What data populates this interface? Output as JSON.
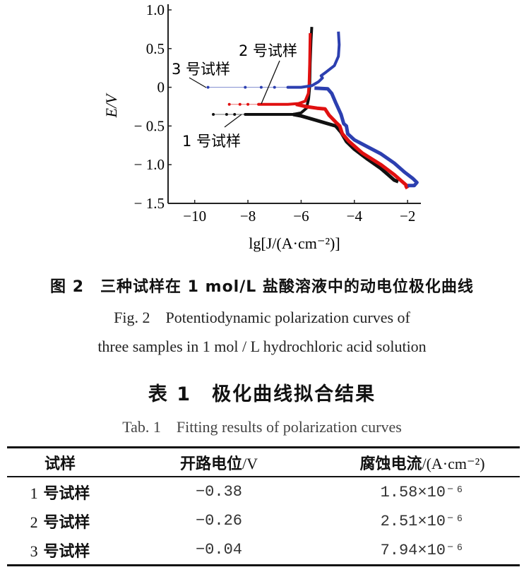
{
  "chart_data": {
    "type": "line",
    "xlabel": "lg[J/(A·cm⁻²)]",
    "ylabel": "E/V",
    "xlim": [
      -11,
      -1.5
    ],
    "ylim": [
      -1.5,
      1.0
    ],
    "xticks": [
      -10,
      -8,
      -6,
      -4,
      -2
    ],
    "yticks": [
      1.0,
      0.5,
      0,
      -0.5,
      -1.0,
      -1.5
    ],
    "xtick_labels": [
      "−10",
      "−8",
      "−6",
      "−4",
      "−2"
    ],
    "ytick_labels": [
      "1.0",
      "0.5",
      "0",
      "− 0.5",
      "− 1.0",
      "− 1.5"
    ],
    "grid": false,
    "series": [
      {
        "name": "1 号试样",
        "color": "#111111",
        "dotted": [
          [
            -9.3,
            -0.35
          ],
          [
            -8.8,
            -0.35
          ],
          [
            -8.5,
            -0.35
          ],
          [
            -8.1,
            -0.35
          ]
        ],
        "anodic": [
          [
            -8.1,
            -0.35
          ],
          [
            -7,
            -0.35
          ],
          [
            -6.3,
            -0.35
          ],
          [
            -6.0,
            -0.33
          ],
          [
            -5.8,
            -0.27
          ],
          [
            -5.72,
            -0.15
          ],
          [
            -5.68,
            0
          ],
          [
            -5.66,
            0.3
          ],
          [
            -5.63,
            0.6
          ],
          [
            -5.6,
            0.78
          ]
        ],
        "cathodic": [
          [
            -6.3,
            -0.35
          ],
          [
            -6.0,
            -0.37
          ],
          [
            -5.5,
            -0.42
          ],
          [
            -5.0,
            -0.47
          ],
          [
            -4.7,
            -0.5
          ],
          [
            -4.5,
            -0.58
          ],
          [
            -4.3,
            -0.7
          ],
          [
            -4.0,
            -0.8
          ],
          [
            -3.5,
            -0.93
          ],
          [
            -3.0,
            -1.05
          ],
          [
            -2.7,
            -1.14
          ],
          [
            -2.5,
            -1.2
          ],
          [
            -2.35,
            -1.22
          ]
        ]
      },
      {
        "name": "2 号试样",
        "color": "#e01010",
        "dotted": [
          [
            -8.7,
            -0.22
          ],
          [
            -8.3,
            -0.22
          ],
          [
            -8.0,
            -0.22
          ],
          [
            -7.6,
            -0.22
          ]
        ],
        "anodic": [
          [
            -7.6,
            -0.22
          ],
          [
            -6.5,
            -0.22
          ],
          [
            -6.1,
            -0.21
          ],
          [
            -5.85,
            -0.18
          ],
          [
            -5.73,
            -0.08
          ],
          [
            -5.7,
            0.05
          ],
          [
            -5.68,
            0.3
          ],
          [
            -5.66,
            0.7
          ]
        ],
        "cathodic": [
          [
            -6.2,
            -0.22
          ],
          [
            -5.8,
            -0.25
          ],
          [
            -5.4,
            -0.27
          ],
          [
            -5.1,
            -0.28
          ],
          [
            -4.95,
            -0.36
          ],
          [
            -4.7,
            -0.45
          ],
          [
            -4.55,
            -0.5
          ],
          [
            -4.45,
            -0.6
          ],
          [
            -4.2,
            -0.7
          ],
          [
            -3.7,
            -0.85
          ],
          [
            -3.0,
            -1.0
          ],
          [
            -2.5,
            -1.13
          ],
          [
            -2.2,
            -1.22
          ],
          [
            -2.0,
            -1.28
          ],
          [
            -2.1,
            -1.3
          ]
        ]
      },
      {
        "name": "3 号试样",
        "color": "#2c3fb0",
        "dotted": [
          [
            -9.5,
            0
          ],
          [
            -8.1,
            0
          ],
          [
            -7.5,
            0
          ],
          [
            -7.0,
            0
          ],
          [
            -6.5,
            0
          ]
        ],
        "anodic": [
          [
            -6.5,
            0
          ],
          [
            -6.0,
            0
          ],
          [
            -5.6,
            0.02
          ],
          [
            -5.35,
            0.07
          ],
          [
            -5.2,
            0.12
          ],
          [
            -5.25,
            0.15
          ],
          [
            -5.05,
            0.2
          ],
          [
            -4.75,
            0.28
          ],
          [
            -4.6,
            0.4
          ],
          [
            -4.57,
            0.55
          ],
          [
            -4.6,
            0.72
          ]
        ],
        "cathodic": [
          [
            -5.5,
            -0.01
          ],
          [
            -5.0,
            -0.02
          ],
          [
            -4.85,
            -0.08
          ],
          [
            -4.7,
            -0.2
          ],
          [
            -4.5,
            -0.35
          ],
          [
            -4.4,
            -0.47
          ],
          [
            -4.3,
            -0.5
          ],
          [
            -4.25,
            -0.6
          ],
          [
            -4.0,
            -0.68
          ],
          [
            -3.5,
            -0.77
          ],
          [
            -3.0,
            -0.86
          ],
          [
            -2.5,
            -0.98
          ],
          [
            -2.1,
            -1.1
          ],
          [
            -1.8,
            -1.18
          ],
          [
            -1.65,
            -1.23
          ],
          [
            -1.75,
            -1.27
          ],
          [
            -2.0,
            -1.27
          ]
        ]
      }
    ],
    "annotations": [
      "3 号试样",
      "2 号试样",
      "1 号试样"
    ]
  },
  "figure": {
    "caption_cn": "图 2　三种试样在 1 mol/L 盐酸溶液中的动电位极化曲线",
    "caption_en_1": "Fig. 2　Potentiodynamic polarization curves of",
    "caption_en_2": "three samples in 1 mol / L hydrochloric acid solution"
  },
  "table": {
    "title_cn": "表 1　极化曲线拟合结果",
    "title_en": "Tab. 1　Fitting results of polarization curves",
    "headers": [
      {
        "main": "试样",
        "unit": ""
      },
      {
        "main": "开路电位",
        "unit": "/V"
      },
      {
        "main": "腐蚀电流",
        "unit": "/(A·cm⁻²)"
      }
    ],
    "rows": [
      {
        "num": "1",
        "sample": "号试样",
        "ocp": "−0.38",
        "icorr": "1.58×10⁻⁶"
      },
      {
        "num": "2",
        "sample": "号试样",
        "ocp": "−0.26",
        "icorr": "2.51×10⁻⁶"
      },
      {
        "num": "3",
        "sample": "号试样",
        "ocp": "−0.04",
        "icorr": "7.94×10⁻⁶"
      }
    ]
  }
}
